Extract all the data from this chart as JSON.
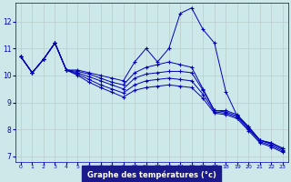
{
  "title": "Graphe des températures (°c)",
  "background_color": "#cce8e8",
  "line_color": "#0000bb",
  "grid_color": "#bbcccc",
  "xlim": [
    -0.5,
    23.5
  ],
  "ylim": [
    6.8,
    12.7
  ],
  "yticks": [
    7,
    8,
    9,
    10,
    11,
    12
  ],
  "xticks": [
    0,
    1,
    2,
    3,
    4,
    5,
    6,
    7,
    8,
    9,
    10,
    11,
    12,
    13,
    14,
    15,
    16,
    17,
    18,
    19,
    20,
    21,
    22,
    23
  ],
  "curves": [
    [
      10.7,
      10.1,
      10.6,
      11.2,
      10.2,
      10.2,
      10.1,
      10.0,
      9.9,
      9.8,
      10.5,
      11.0,
      10.5,
      11.0,
      12.3,
      12.5,
      11.7,
      11.2,
      9.4,
      8.5,
      8.1,
      7.6,
      7.5,
      7.3
    ],
    [
      10.7,
      10.1,
      10.6,
      11.2,
      10.2,
      10.15,
      10.05,
      9.9,
      9.75,
      9.65,
      10.1,
      10.3,
      10.4,
      10.5,
      10.4,
      10.3,
      9.5,
      8.7,
      8.7,
      8.55,
      8.1,
      7.6,
      7.5,
      7.3
    ],
    [
      10.7,
      10.1,
      10.6,
      11.2,
      10.2,
      10.1,
      9.95,
      9.8,
      9.65,
      9.5,
      9.9,
      10.05,
      10.1,
      10.15,
      10.15,
      10.1,
      9.45,
      8.7,
      8.65,
      8.5,
      8.05,
      7.6,
      7.45,
      7.25
    ],
    [
      10.7,
      10.1,
      10.6,
      11.2,
      10.2,
      10.05,
      9.85,
      9.65,
      9.5,
      9.35,
      9.65,
      9.8,
      9.85,
      9.9,
      9.85,
      9.8,
      9.3,
      8.65,
      8.6,
      8.45,
      8.0,
      7.55,
      7.4,
      7.2
    ],
    [
      10.7,
      10.1,
      10.6,
      11.2,
      10.2,
      10.0,
      9.75,
      9.55,
      9.38,
      9.2,
      9.45,
      9.55,
      9.6,
      9.65,
      9.6,
      9.55,
      9.15,
      8.6,
      8.55,
      8.4,
      7.95,
      7.5,
      7.35,
      7.15
    ]
  ]
}
